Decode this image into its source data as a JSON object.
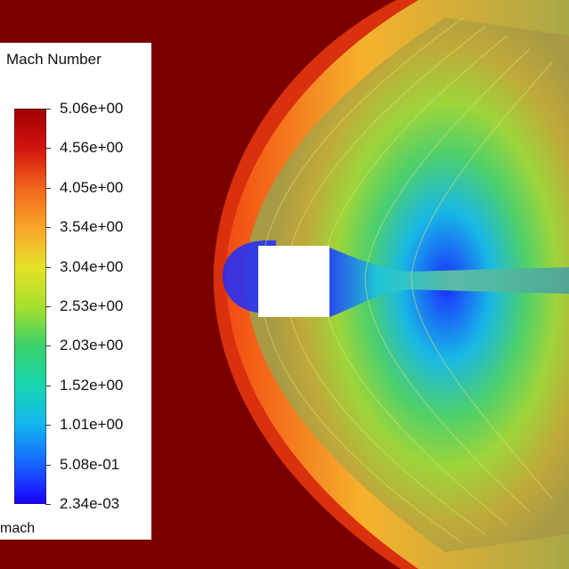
{
  "chart_data": {
    "type": "contour",
    "legend": {
      "title": "Mach Number",
      "variable": "mach",
      "min": 0.00234,
      "max": 5.06,
      "ticks": [
        "5.06e+00",
        "4.56e+00",
        "4.05e+00",
        "3.54e+00",
        "3.04e+00",
        "2.53e+00",
        "2.03e+00",
        "1.52e+00",
        "1.01e+00",
        "5.08e-01",
        "2.34e-03"
      ],
      "colors": [
        "#1a00ff",
        "#1763ff",
        "#13b5f0",
        "#18d6b0",
        "#38d26a",
        "#a8e02c",
        "#e6e02a",
        "#f9a52a",
        "#f2641b",
        "#d4140e",
        "#9e0000"
      ]
    },
    "free_stream_color": "#7a0000",
    "body_color": "#ffffff",
    "contour_line_color": "#e2e86a"
  }
}
